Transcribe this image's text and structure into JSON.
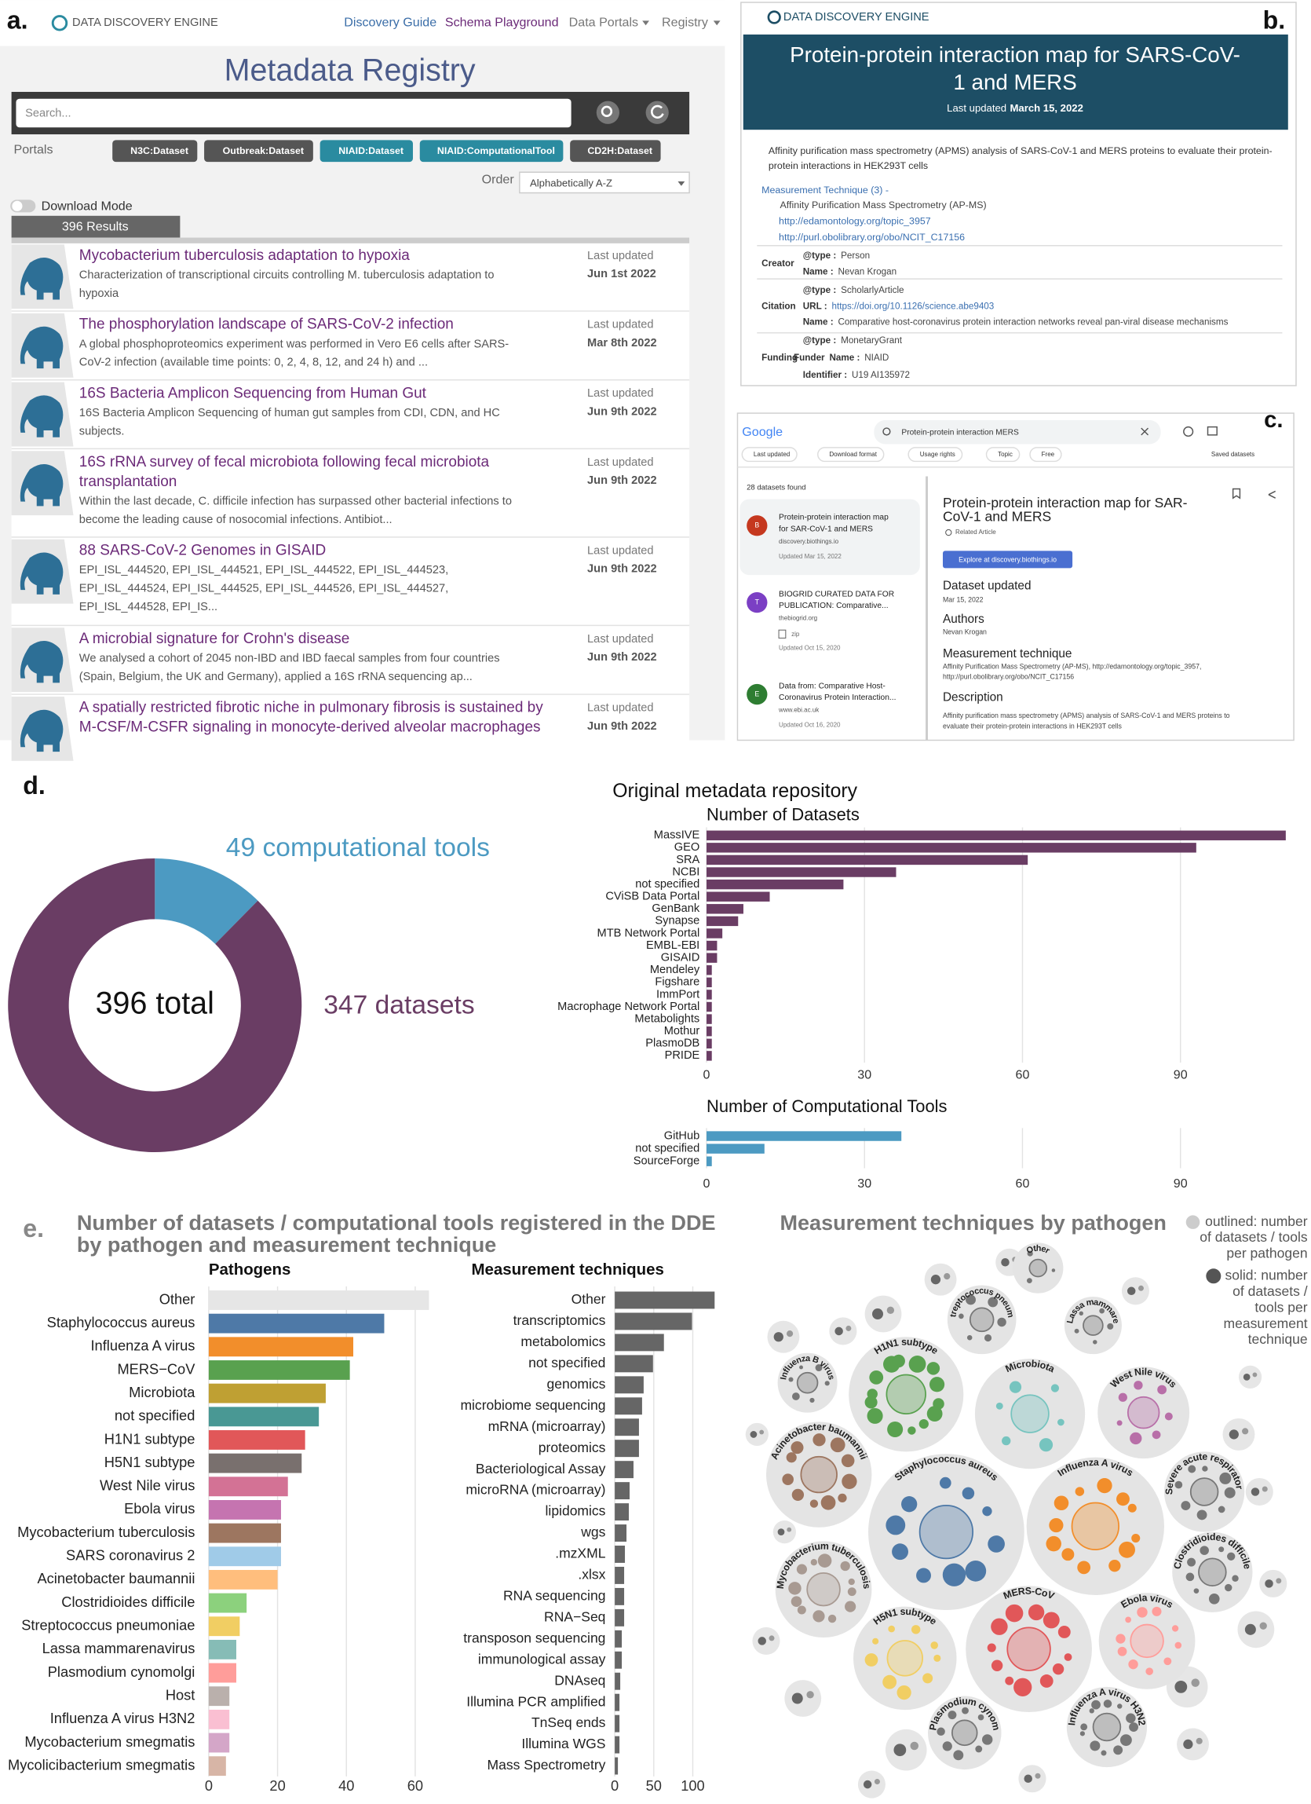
{
  "panel_a": {
    "label": "a.",
    "brand": "DATA DISCOVERY ENGINE",
    "nav": [
      "Discovery Guide",
      "Schema Playground",
      "Data Portals",
      "Registry"
    ],
    "title": "Metadata Registry",
    "search_placeholder": "Search...",
    "portals_label": "Portals",
    "portals": [
      "N3C:Dataset",
      "Outbreak:Dataset",
      "NIAID:Dataset",
      "NIAID:ComputationalTool",
      "CD2H:Dataset"
    ],
    "order_label": "Order",
    "order_value": "Alphabetically A-Z",
    "download_mode": "Download Mode",
    "results_count": "396 Results",
    "results": [
      {
        "title": [
          "Mycobacterium tuberculosis adaptation to hypoxia"
        ],
        "description": [
          "Characterization of transcriptional circuits controlling M. tuberculosis adaptation to",
          "hypoxia"
        ],
        "updated_label": "Last updated",
        "date": "Jun 1st 2022"
      },
      {
        "title": [
          "The phosphorylation landscape of SARS-CoV-2 infection"
        ],
        "description": [
          "A global phosphoproteomics experiment was performed in Vero E6 cells after SARS-",
          "CoV-2 infection (available time points: 0, 2, 4, 8, 12, and 24 h) and ..."
        ],
        "updated_label": "Last updated",
        "date": "Mar 8th 2022"
      },
      {
        "title": [
          "16S Bacteria Amplicon Sequencing from Human Gut"
        ],
        "description": [
          "16S Bacteria Amplicon Sequencing of human gut samples from CDI, CDN, and HC",
          "subjects."
        ],
        "updated_label": "Last updated",
        "date": "Jun 9th 2022"
      },
      {
        "title": [
          "16S rRNA survey of fecal microbiota following fecal microbiota",
          "transplantation"
        ],
        "description": [
          "Within the last decade, C. difficile infection has surpassed other bacterial infections to",
          "become the leading cause of nosocomial infections. Antibiot..."
        ],
        "updated_label": "Last updated",
        "date": "Jun 9th 2022"
      },
      {
        "title": [
          "88 SARS-CoV-2 Genomes in GISAID"
        ],
        "description": [
          "EPI_ISL_444520, EPI_ISL_444521, EPI_ISL_444522, EPI_ISL_444523,",
          "EPI_ISL_444524, EPI_ISL_444525, EPI_ISL_444526, EPI_ISL_444527,",
          "EPI_ISL_444528, EPI_IS..."
        ],
        "updated_label": "Last updated",
        "date": "Jun 9th 2022"
      },
      {
        "title": [
          "A microbial signature for Crohn's disease"
        ],
        "description": [
          "We analysed a cohort of 2045 non-IBD and IBD faecal samples from four countries",
          "(Spain, Belgium, the UK and Germany), applied a 16S rRNA sequencing ap..."
        ],
        "updated_label": "Last updated",
        "date": "Jun 9th 2022"
      },
      {
        "title": [
          "A spatially restricted fibrotic niche in pulmonary fibrosis is sustained by",
          "M-CSF/M-CSFR signaling in monocyte-derived alveolar macrophages"
        ],
        "description": [],
        "updated_label": "Last updated",
        "date": "Jun 9th 2022"
      }
    ]
  },
  "panel_b": {
    "label": "b.",
    "brand": "DATA DISCOVERY ENGINE",
    "title": [
      "Protein-protein interaction map for SARS-CoV-",
      "1 and MERS"
    ],
    "updated_label": "Last updated",
    "updated_date": "March 15, 2022",
    "description": [
      "Affinity purification mass spectrometry (APMS) analysis of SARS-CoV-1 and MERS proteins to evaluate their protein-",
      "protein interactions in HEK293T cells"
    ],
    "measurement_label": "Measurement Technique (3) -",
    "measurement": [
      "Affinity Purification Mass Spectrometry (AP-MS)",
      "http://edamontology.org/topic_3957",
      "http://purl.obolibrary.org/obo/NCIT_C17156"
    ],
    "properties": [
      {
        "name": "Creator",
        "fields": [
          {
            "key": "@type :",
            "value": "Person"
          },
          {
            "key": "Name :",
            "value": "Nevan Krogan"
          }
        ]
      },
      {
        "name": "Citation",
        "fields": [
          {
            "key": "@type :",
            "value": "ScholarlyArticle"
          },
          {
            "key": "URL :",
            "value": "https://doi.org/10.1126/science.abe9403"
          },
          {
            "key": "Name :",
            "value": "Comparative host-coronavirus protein interaction networks reveal pan-viral disease mechanisms"
          }
        ]
      },
      {
        "name": "Funding",
        "fields": [
          {
            "key": "@type :",
            "value": "MonetaryGrant"
          },
          {
            "prefix": "Funder",
            "key": "Name :",
            "value": "NIAID"
          },
          {
            "key": "Identifier :",
            "value": "U19 AI135972"
          }
        ]
      }
    ]
  },
  "panel_c": {
    "label": "c.",
    "logo": "Google",
    "query": "Protein-protein interaction MERS",
    "filters": [
      "Last updated",
      "Download format",
      "Usage rights",
      "Topic",
      "Free"
    ],
    "saved": "Saved datasets",
    "count": "28 datasets found",
    "results": [
      {
        "badge": "B",
        "title": [
          "Protein-protein interaction map",
          "for SAR-CoV-1 and MERS"
        ],
        "source": "discovery.biothings.io",
        "updated": "Updated Mar 15, 2022"
      },
      {
        "badge": "T",
        "title": [
          "BIOGRID CURATED DATA FOR",
          "PUBLICATION: Comparative..."
        ],
        "source": "thebiogrid.org",
        "format": "zip",
        "updated": "Updated Oct 15, 2020"
      },
      {
        "badge": "E",
        "title": [
          "Data from: Comparative Host-",
          "Coronavirus Protein Interaction..."
        ],
        "source": "www.ebi.ac.uk",
        "updated": "Updated Oct 16, 2020"
      }
    ],
    "detail": {
      "title": [
        "Protein-protein interaction map for SAR-",
        "CoV-1 and MERS"
      ],
      "related": "Related Article",
      "button": "Explore at discovery.biothings.io",
      "sections": [
        {
          "heading": "Dataset updated",
          "text": [
            "Mar 15, 2022"
          ]
        },
        {
          "heading": "Authors",
          "text": [
            "Nevan Krogan"
          ]
        },
        {
          "heading": "Measurement technique",
          "text": [
            "Affinity Purification Mass Spectrometry (AP-MS), http://edamontology.org/topic_3957,",
            "http://purl.obolibrary.org/obo/NCIT_C17156"
          ]
        },
        {
          "heading": "Description",
          "text": [
            "Affinity purification mass spectrometry (APMS) analysis of SARS-CoV-1 and MERS proteins to",
            "evaluate their protein-protein interactions in HEK293T cells"
          ]
        }
      ]
    }
  },
  "panel_d": {
    "label": "d."
  },
  "panel_e": {
    "label": "e.",
    "title": [
      "Number of datasets / computational tools registered in the DDE",
      "by pathogen and measurement technique"
    ]
  },
  "chart_data": [
    {
      "type": "donut",
      "values": [
        347,
        49
      ],
      "value_labels": [
        "347 datasets",
        "49 computational tools"
      ],
      "colors": [
        "#6a3d64",
        "#4c9ac2"
      ],
      "center_label": "396 total"
    },
    {
      "type": "hbar",
      "title": "Original metadata repository",
      "subtitle": "Number of Datasets",
      "categories": [
        "MassIVE",
        "GEO",
        "SRA",
        "NCBI",
        "not specified",
        "CViSB Data Portal",
        "GenBank",
        "Synapse",
        "MTB Network Portal",
        "EMBL-EBI",
        "GISAID",
        "Mendeley",
        "Figshare",
        "ImmPort",
        "Macrophage Network Portal",
        "Metabolights",
        "Mothur",
        "PlasmoDB",
        "PRIDE"
      ],
      "values": [
        110,
        93,
        61,
        36,
        26,
        12,
        7,
        6,
        3,
        2,
        2,
        1,
        1,
        1,
        1,
        1,
        1,
        1,
        1
      ],
      "color": "#6a3d64",
      "xlim": [
        0,
        110
      ],
      "xticks": [
        0,
        30,
        60,
        90
      ],
      "grid": true
    },
    {
      "type": "hbar",
      "title": "Number of Computational Tools",
      "categories": [
        "GitHub",
        "not specified",
        "SourceForge"
      ],
      "values": [
        37,
        11,
        1
      ],
      "color": "#4c9ac2",
      "xlim": [
        0,
        110
      ],
      "xticks": [
        0,
        30,
        60,
        90
      ],
      "grid": true
    },
    {
      "type": "hbar",
      "title": "Pathogens",
      "categories": [
        "Other",
        "Staphylococcus aureus",
        "Influenza A virus",
        "MERS−CoV",
        "Microbiota",
        "not specified",
        "H1N1 subtype",
        "H5N1 subtype",
        "West Nile virus",
        "Ebola virus",
        "Mycobacterium tuberculosis",
        "SARS coronavirus 2",
        "Acinetobacter baumannii",
        "Clostridioides difficile",
        "Streptococcus pneumoniae",
        "Lassa mammarenavirus",
        "Plasmodium cynomolgi",
        "Host",
        "Influenza A virus H3N2",
        "Mycobacterium smegmatis",
        "Mycolicibacterium smegmatis"
      ],
      "values": [
        64,
        51,
        42,
        41,
        34,
        32,
        28,
        27,
        23,
        21,
        21,
        21,
        20,
        11,
        9,
        8,
        8,
        6,
        6,
        6,
        5
      ],
      "colors": [
        "#e6e6e6",
        "#4e79a7",
        "#f28e2b",
        "#59a14f",
        "#bfa033",
        "#499894",
        "#e15759",
        "#79706e",
        "#d37295",
        "#c574b0",
        "#9d7660",
        "#a0cbe8",
        "#ffbe7d",
        "#8cd17d",
        "#f1ce63",
        "#86bcb6",
        "#ff9d9a",
        "#bab0ac",
        "#fabfd2",
        "#d4a6c8",
        "#d7b5a6"
      ],
      "xlim": [
        0,
        65
      ],
      "xticks": [
        0,
        20,
        40,
        60
      ],
      "grid": true
    },
    {
      "type": "hbar",
      "title": "Measurement techniques",
      "categories": [
        "Other",
        "transcriptomics",
        "metabolomics",
        "not specified",
        "genomics",
        "microbiome sequencing",
        "mRNA (microarray)",
        "proteomics",
        "Bacteriological Assay",
        "microRNA (microarray)",
        "lipidomics",
        "wgs",
        ".mzXML",
        ".xlsx",
        "RNA sequencing",
        "RNA−Seq",
        "transposon sequencing",
        "immunological assay",
        "DNAseq",
        "Illumina PCR amplified",
        "TnSeq ends",
        "Illumina WGS",
        "Mass Spectrometry"
      ],
      "values": [
        128,
        99,
        63,
        49,
        37,
        35,
        31,
        31,
        24,
        19,
        18,
        15,
        13,
        12,
        12,
        12,
        9,
        9,
        7,
        6,
        6,
        6,
        4
      ],
      "color": "#666666",
      "xlim": [
        0,
        130
      ],
      "xticks": [
        0,
        50,
        100
      ],
      "grid": true
    }
  ],
  "bubble_chart": {
    "title": "Measurement techniques by pathogen",
    "legend": [
      {
        "lines": [
          "outlined: number",
          "of datasets / tools",
          "per pathogen"
        ]
      },
      {
        "lines": [
          "solid: number",
          "of datasets /",
          "tools per",
          "measurement",
          "technique"
        ]
      }
    ],
    "groups": [
      {
        "name": "Other",
        "color": "#777777"
      },
      {
        "name": "Streptococcus pneumo",
        "color": "#777777"
      },
      {
        "name": "Lassa mammare",
        "color": "#777777"
      },
      {
        "name": "Influenza B virus",
        "color": "#777777"
      },
      {
        "name": "H1N1 subtype",
        "color": "#59a14f"
      },
      {
        "name": "Microbiota",
        "color": "#76c4bf"
      },
      {
        "name": "West Nile virus",
        "color": "#b86fa8"
      },
      {
        "name": "Acinetobacter baumannii",
        "color": "#9d7660"
      },
      {
        "name": "Staphylococcus aureus",
        "color": "#4e79a7"
      },
      {
        "name": "Influenza A virus",
        "color": "#f28e2b"
      },
      {
        "name": "Severe acute respiratory",
        "color": "#777777"
      },
      {
        "name": "Mycobacterium tuberculosis",
        "color": "#a89a92"
      },
      {
        "name": "Clostridioides difficile",
        "color": "#777777"
      },
      {
        "name": "H5N1 subtype",
        "color": "#f1ce63"
      },
      {
        "name": "MERS-CoV",
        "color": "#e15759"
      },
      {
        "name": "Ebola virus",
        "color": "#ff9d9a"
      },
      {
        "name": "Plasmodium cynom",
        "color": "#777777"
      },
      {
        "name": "Influenza A virus H3N2",
        "color": "#777777"
      }
    ]
  }
}
